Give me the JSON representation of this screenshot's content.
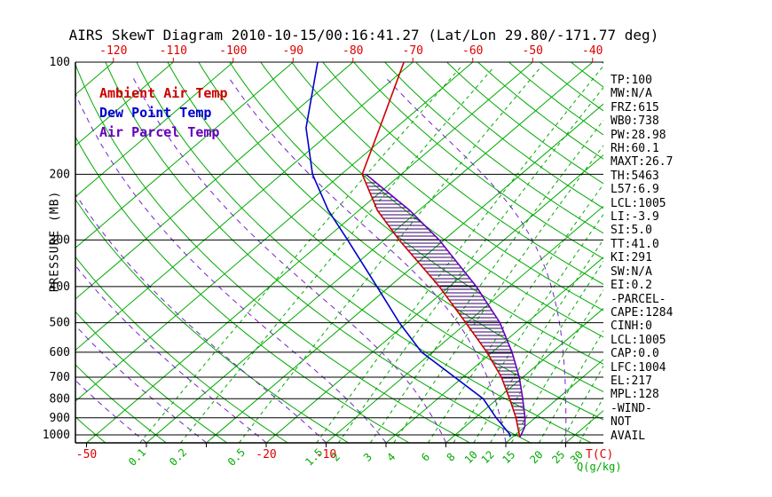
{
  "title": "AIRS SkewT Diagram 2010-10-15/00:16:41.27 (Lat/Lon 29.80/-171.77 deg)",
  "legend": [
    {
      "label": "Ambient Air Temp",
      "color": "#cc0000"
    },
    {
      "label": "Dew Point Temp",
      "color": "#0000cc"
    },
    {
      "label": "Air Parcel Temp",
      "color": "#6600bb"
    }
  ],
  "colors": {
    "isotherm": "#00aa00",
    "dry_adiabat": "#00aa00",
    "moist_adiabat": "#7722cc",
    "mixing_ratio": "#00aa00",
    "pressure_line": "#000000",
    "axis_red": "#dd0000",
    "axis_green": "#00aa00",
    "hatch": "#330066",
    "text": "#000000"
  },
  "axes": {
    "y_label": "PRESSURE (MB)",
    "pressure_ticks": [
      100,
      200,
      300,
      400,
      500,
      600,
      700,
      800,
      900,
      1000
    ],
    "top_temp_ticks": [
      -120,
      -110,
      -100,
      -90,
      -80,
      -70,
      -60,
      -50,
      -40
    ],
    "bottom_temp_ticks": [
      -50,
      -20,
      -10
    ],
    "temp_axis_label": "T(C)",
    "q_axis_label": "Q(g/kg)"
  },
  "stats_panel": [
    "TP:100",
    "MW:N/A",
    "FRZ:615",
    "WB0:738",
    "PW:28.98",
    "RH:60.1",
    "MAXT:26.7",
    "TH:5463",
    "L57:6.9",
    "LCL:1005",
    "LI:-3.9",
    "SI:5.0",
    "TT:41.0",
    "KI:291",
    "SW:N/A",
    "EI:0.2",
    "-PARCEL-",
    "CAPE:1284",
    "CINH:0",
    "LCL:1005",
    "CAP:0.0",
    "LFC:1004",
    "EL:217",
    "MPL:128",
    "-WIND-",
    "NOT",
    "AVAIL"
  ],
  "chart_data": {
    "type": "line",
    "variant": "skew-t-log-p",
    "x_axis": {
      "label": "T(C)",
      "skewed": true,
      "surface_range_C": [
        -52,
        36
      ]
    },
    "y_axis": {
      "label": "PRESSURE (MB)",
      "scale": "log",
      "range_mb": [
        100,
        1050
      ]
    },
    "series": [
      {
        "id": "ambient",
        "name": "Ambient Air Temp",
        "color": "#cc0000",
        "style": "solid",
        "points": [
          {
            "p": 1013,
            "t": 21.2
          },
          {
            "p": 1000,
            "t": 20.7
          },
          {
            "p": 900,
            "t": 16.8
          },
          {
            "p": 800,
            "t": 12.0
          },
          {
            "p": 700,
            "t": 6.4
          },
          {
            "p": 600,
            "t": -0.9
          },
          {
            "p": 500,
            "t": -10.2
          },
          {
            "p": 400,
            "t": -21.7
          },
          {
            "p": 300,
            "t": -37.5
          },
          {
            "p": 250,
            "t": -46.9
          },
          {
            "p": 200,
            "t": -56.5
          },
          {
            "p": 150,
            "t": -62.7
          },
          {
            "p": 100,
            "t": -71.5
          }
        ]
      },
      {
        "id": "dewpoint",
        "name": "Dew Point Temp",
        "color": "#0000cc",
        "style": "solid",
        "points": [
          {
            "p": 1013,
            "t": 19.5
          },
          {
            "p": 1000,
            "t": 19.2
          },
          {
            "p": 900,
            "t": 13.5
          },
          {
            "p": 800,
            "t": 7.6
          },
          {
            "p": 700,
            "t": -1.4
          },
          {
            "p": 600,
            "t": -11.8
          },
          {
            "p": 500,
            "t": -21.3
          },
          {
            "p": 400,
            "t": -32.1
          },
          {
            "p": 300,
            "t": -46.1
          },
          {
            "p": 250,
            "t": -55.1
          },
          {
            "p": 200,
            "t": -64.8
          },
          {
            "p": 150,
            "t": -75.0
          },
          {
            "p": 100,
            "t": -85.9
          }
        ]
      },
      {
        "id": "parcel",
        "name": "Air Parcel Temp",
        "color": "#6600bb",
        "style": "solid",
        "points": [
          {
            "p": 1013,
            "t": 21.2
          },
          {
            "p": 1000,
            "t": 21.0
          },
          {
            "p": 950,
            "t": 20.0
          },
          {
            "p": 900,
            "t": 18.3
          },
          {
            "p": 800,
            "t": 14.2
          },
          {
            "p": 700,
            "t": 9.4
          },
          {
            "p": 600,
            "t": 3.3
          },
          {
            "p": 500,
            "t": -4.5
          },
          {
            "p": 400,
            "t": -15.5
          },
          {
            "p": 300,
            "t": -30.8
          },
          {
            "p": 250,
            "t": -41.5
          },
          {
            "p": 200,
            "t": -55.9
          }
        ]
      }
    ],
    "cape_hatch": {
      "between": [
        "parcel",
        "ambient"
      ],
      "p_bottom_mb": 955,
      "p_top_mb": 210
    },
    "grid": {
      "isotherms_C": {
        "min": -160,
        "max": 40,
        "step": 10
      },
      "dry_adiabats_theta_C": {
        "min": -60,
        "max": 190,
        "step": 10
      },
      "moist_adiabats_surface_C": {
        "min": -40,
        "max": 40,
        "step": 10
      },
      "mixing_ratio_g_kg": [
        0.1,
        0.2,
        0.5,
        1.5,
        2,
        3,
        4,
        6,
        8,
        10,
        12,
        15,
        20,
        25,
        30
      ]
    }
  }
}
